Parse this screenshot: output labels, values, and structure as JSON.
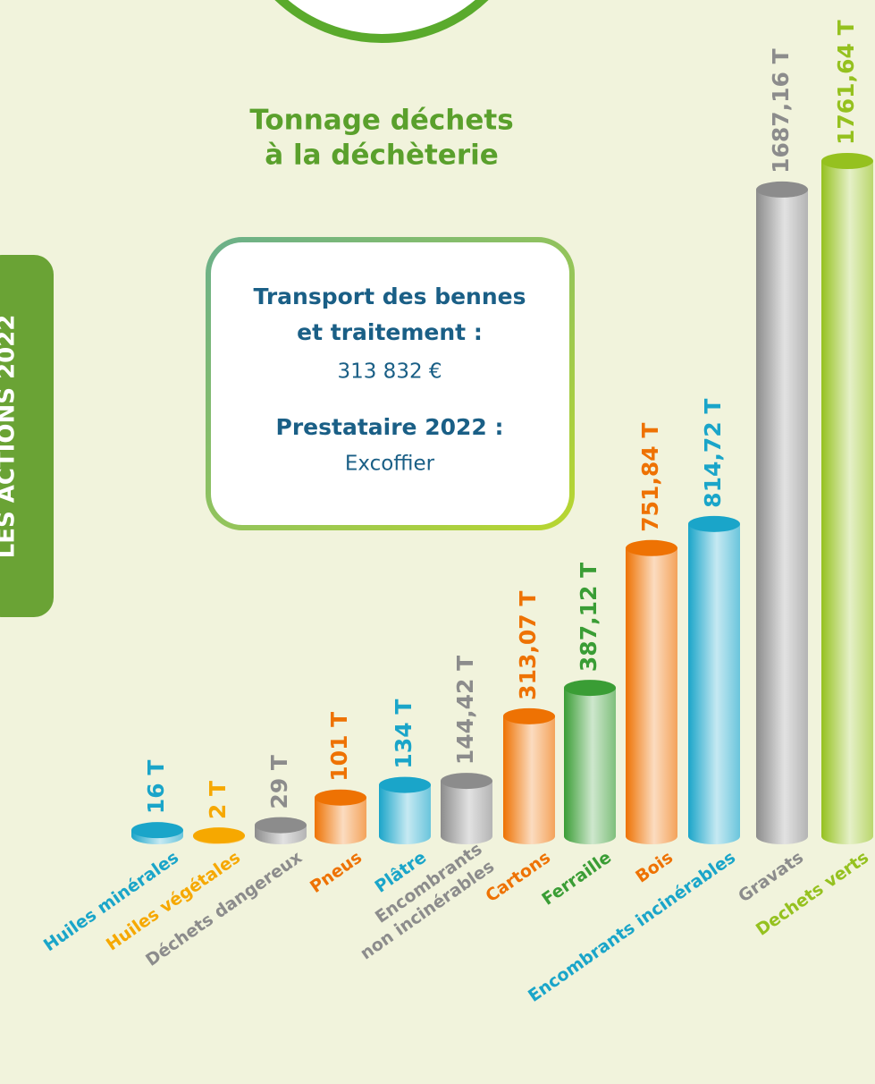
{
  "side_tab": "LES ACTIONS 2022",
  "box": {
    "line1": "Transport des bennes",
    "line2": "et traitement :",
    "amount": "313 832 €",
    "provider_label": "Prestataire 2022 :",
    "provider": "Excoffier"
  },
  "chart_data": {
    "type": "bar",
    "title": "Tonnage déchets\nà la déchèterie",
    "categories": [
      "Huiles minérales",
      "Huiles végétales",
      "Déchets dangereux",
      "Pneus",
      "Plâtre",
      "Encombrants\nnon incinérables",
      "Cartons",
      "Ferraille",
      "Bois",
      "Encombrants incinérables",
      "Gravats",
      "Dechets verts"
    ],
    "values": [
      16,
      2,
      29,
      101,
      134,
      144.42,
      313.07,
      387.12,
      751.84,
      814.72,
      1687.16,
      1761.64
    ],
    "value_labels": [
      "16 T",
      "2 T",
      "29 T",
      "101 T",
      "134 T",
      "144,42 T",
      "313,07 T",
      "387,12 T",
      "751,84 T",
      "814,72 T",
      "1687,16 T",
      "1761,64 T"
    ],
    "colors": [
      "#1aa5c9",
      "#f6a800",
      "#8c8c8c",
      "#ee7203",
      "#1aa5c9",
      "#8c8c8c",
      "#ee7203",
      "#3a9d35",
      "#ee7203",
      "#1aa5c9",
      "#8c8c8c",
      "#95c11f"
    ]
  }
}
